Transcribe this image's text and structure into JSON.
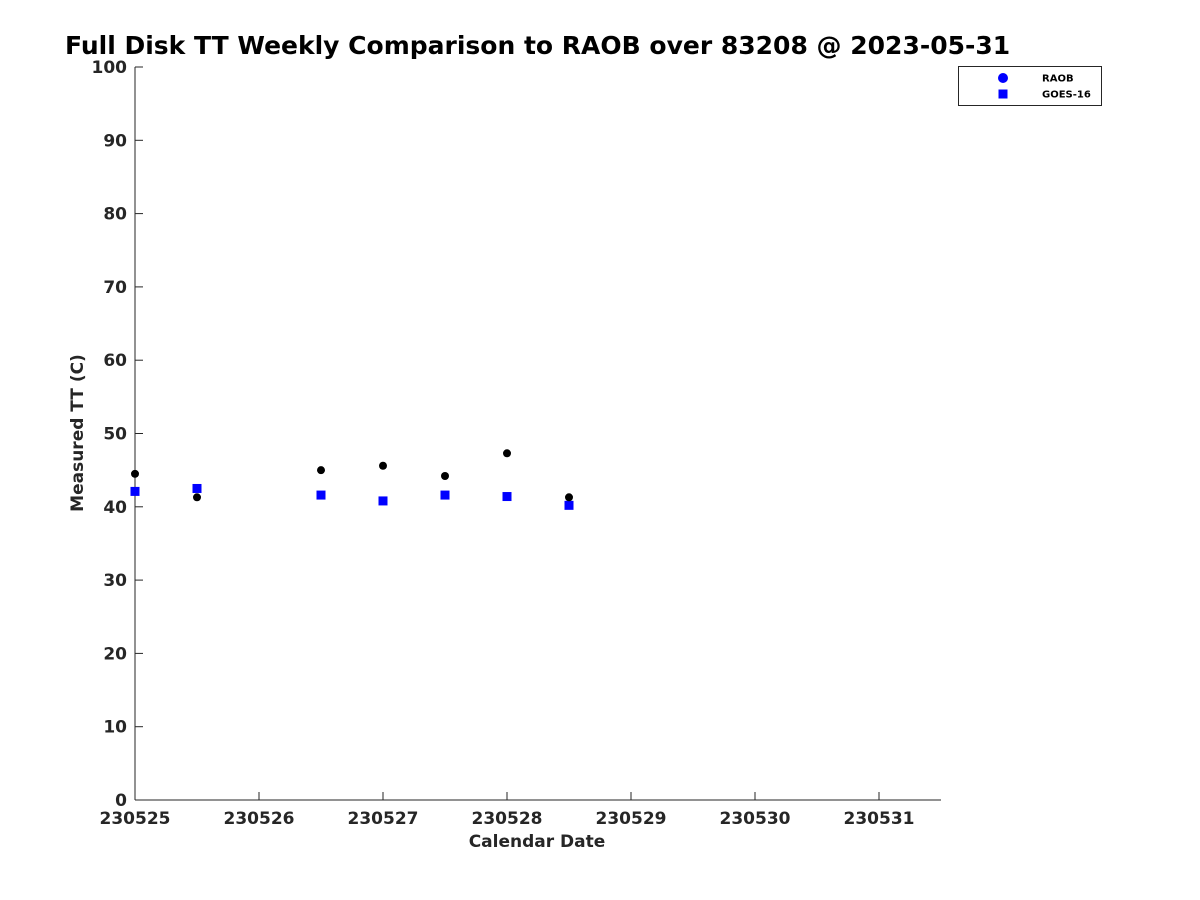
{
  "chart_data": {
    "type": "scatter",
    "title": "Full Disk TT Weekly Comparison to RAOB over 83208 @ 2023-05-31",
    "xlabel": "Calendar Date",
    "ylabel": "Measured TT (C)",
    "xlim": [
      0,
      6.5
    ],
    "ylim": [
      0,
      100
    ],
    "x_ticks": [
      {
        "x": 0,
        "label": "230525"
      },
      {
        "x": 1,
        "label": "230526"
      },
      {
        "x": 2,
        "label": "230527"
      },
      {
        "x": 3,
        "label": "230528"
      },
      {
        "x": 4,
        "label": "230529"
      },
      {
        "x": 5,
        "label": "230530"
      },
      {
        "x": 6,
        "label": "230531"
      }
    ],
    "y_ticks": [
      0,
      10,
      20,
      30,
      40,
      50,
      60,
      70,
      80,
      90,
      100
    ],
    "grid": false,
    "legend_position": "top-right",
    "series": [
      {
        "name": "RAOB",
        "marker": "circle",
        "color": "#000000",
        "legend_color": "#0000ff",
        "points": [
          {
            "x": 0.0,
            "y": 44.5
          },
          {
            "x": 0.5,
            "y": 41.3
          },
          {
            "x": 1.5,
            "y": 45.0
          },
          {
            "x": 2.0,
            "y": 45.6
          },
          {
            "x": 2.5,
            "y": 44.2
          },
          {
            "x": 3.0,
            "y": 47.3
          },
          {
            "x": 3.5,
            "y": 41.3
          }
        ]
      },
      {
        "name": "GOES-16",
        "marker": "square",
        "color": "#0000ff",
        "legend_color": "#0000ff",
        "points": [
          {
            "x": 0.0,
            "y": 42.1
          },
          {
            "x": 0.5,
            "y": 42.5
          },
          {
            "x": 1.5,
            "y": 41.6
          },
          {
            "x": 2.0,
            "y": 40.8
          },
          {
            "x": 2.5,
            "y": 41.6
          },
          {
            "x": 3.0,
            "y": 41.4
          },
          {
            "x": 3.5,
            "y": 40.2
          }
        ]
      }
    ]
  }
}
